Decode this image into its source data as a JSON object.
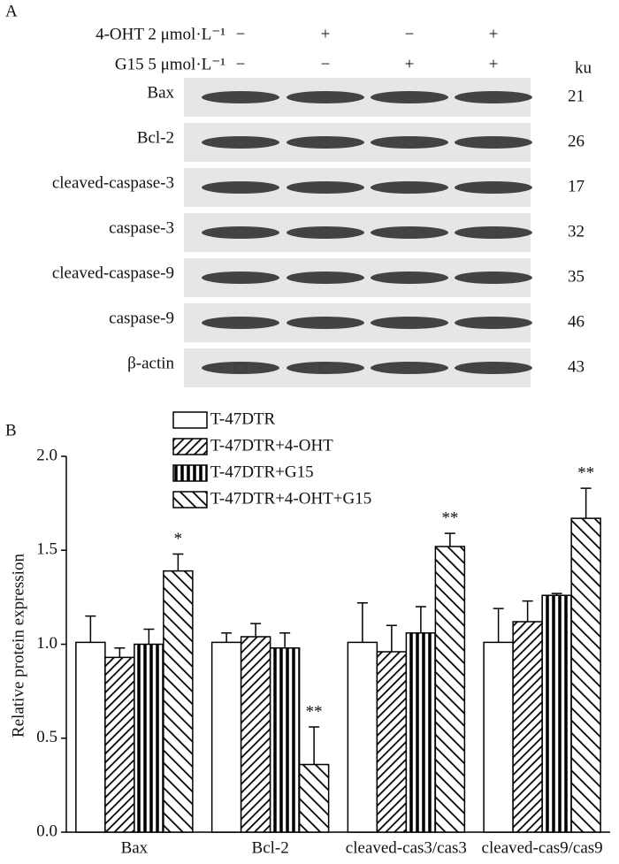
{
  "panel_a": {
    "label": "A",
    "unit": "ku",
    "treatments": [
      {
        "name": "4-OHT 2 μmol·L⁻¹",
        "signs": [
          "−",
          "+",
          "−",
          "+"
        ]
      },
      {
        "name": "G15 5 μmol·L⁻¹",
        "signs": [
          "−",
          "−",
          "+",
          "+"
        ]
      }
    ],
    "bands": [
      {
        "name": "Bax",
        "ku": 21
      },
      {
        "name": "Bcl-2",
        "ku": 26
      },
      {
        "name": "cleaved-caspase-3",
        "ku": 17
      },
      {
        "name": "caspase-3",
        "ku": 32
      },
      {
        "name": "cleaved-caspase-9",
        "ku": 35
      },
      {
        "name": "caspase-9",
        "ku": 46
      },
      {
        "name": "β-actin",
        "ku": 43
      }
    ]
  },
  "chart_data": {
    "type": "bar",
    "panel_label": "B",
    "y_label": "Relative protein expression",
    "categories": [
      "Bax",
      "Bcl-2",
      "cleaved-cas3/cas3",
      "cleaved-cas9/cas9"
    ],
    "series": [
      {
        "name": "T-47DTR",
        "color": "#000000",
        "hatch": "none",
        "values": [
          1.01,
          1.01,
          1.01,
          1.01
        ],
        "errors": [
          0.14,
          0.05,
          0.21,
          0.18
        ]
      },
      {
        "name": "T-47DTR+4-OHT",
        "color": "#000000",
        "hatch": "/",
        "values": [
          0.93,
          1.04,
          0.96,
          1.12
        ],
        "errors": [
          0.05,
          0.07,
          0.14,
          0.11
        ]
      },
      {
        "name": "T-47DTR+G15",
        "color": "#000000",
        "hatch": "|",
        "values": [
          1.0,
          0.98,
          1.06,
          1.26
        ],
        "errors": [
          0.08,
          0.08,
          0.14,
          0.01
        ]
      },
      {
        "name": "T-47DTR+4-OHT+G15",
        "color": "#000000",
        "hatch": "\\",
        "values": [
          1.39,
          0.36,
          1.52,
          1.67
        ],
        "errors": [
          0.09,
          0.2,
          0.07,
          0.16
        ],
        "annotations": [
          "*",
          "**",
          "**",
          "**"
        ]
      }
    ],
    "ylim": [
      0,
      2
    ],
    "yticks": [
      {
        "value": 0,
        "label": "0.0"
      },
      {
        "value": 0.5,
        "label": "0.5"
      },
      {
        "value": 1,
        "label": "1.0"
      },
      {
        "value": 1.5,
        "label": "1.5"
      },
      {
        "value": 2,
        "label": "2.0"
      }
    ]
  }
}
